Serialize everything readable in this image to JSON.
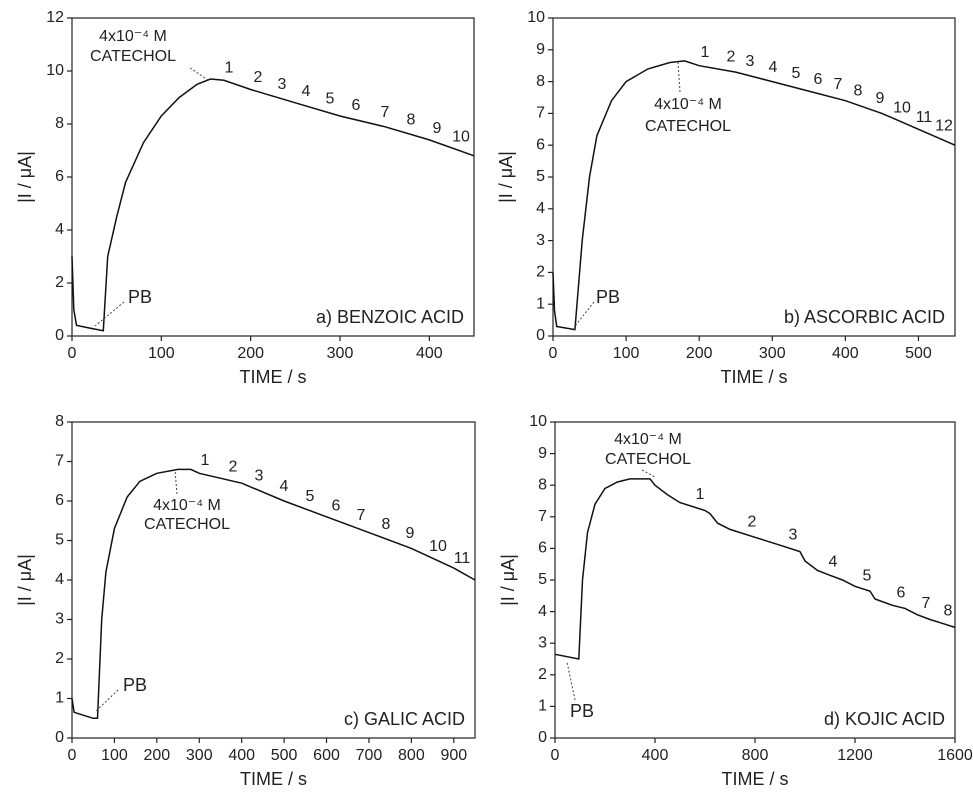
{
  "chart_data": [
    {
      "type": "line",
      "panel_label": "a) BENZOIC ACID",
      "x_label": "TIME / s",
      "y_label": "|I / μA|",
      "xlim": [
        0,
        450
      ],
      "ylim": [
        0,
        12
      ],
      "xticks": [
        0,
        100,
        200,
        300,
        400
      ],
      "yticks": [
        0,
        2,
        4,
        6,
        8,
        10,
        12
      ],
      "series": [
        {
          "color": "#111111",
          "x": [
            0,
            2,
            5,
            20,
            35,
            40,
            50,
            60,
            80,
            100,
            120,
            140,
            155,
            170,
            200,
            250,
            300,
            350,
            400,
            450
          ],
          "values": [
            3.0,
            1.0,
            0.4,
            0.3,
            0.2,
            3.0,
            4.5,
            5.8,
            7.3,
            8.3,
            9.0,
            9.5,
            9.7,
            9.65,
            9.3,
            8.8,
            8.3,
            7.9,
            7.4,
            6.8
          ]
        }
      ],
      "catechol_label": [
        "4x10⁻⁴ M",
        "CATECHOL"
      ],
      "baseline_label": "PB",
      "step_labels": [
        "1",
        "2",
        "3",
        "4",
        "5",
        "6",
        "7",
        "8",
        "9",
        "10"
      ]
    },
    {
      "type": "line",
      "panel_label": "b) ASCORBIC ACID",
      "x_label": "TIME / s",
      "y_label": "|I / μA|",
      "xlim": [
        0,
        550
      ],
      "ylim": [
        0,
        10
      ],
      "xticks": [
        0,
        100,
        200,
        300,
        400,
        500
      ],
      "yticks": [
        0,
        1,
        2,
        3,
        4,
        5,
        6,
        7,
        8,
        9,
        10
      ],
      "series": [
        {
          "color": "#111111",
          "x": [
            0,
            2,
            5,
            30,
            40,
            50,
            60,
            80,
            100,
            130,
            160,
            180,
            200,
            250,
            300,
            350,
            400,
            450,
            500,
            550
          ],
          "values": [
            2.0,
            0.8,
            0.3,
            0.2,
            3.0,
            5.0,
            6.3,
            7.4,
            8.0,
            8.4,
            8.6,
            8.65,
            8.5,
            8.3,
            8.0,
            7.7,
            7.4,
            7.0,
            6.5,
            6.0
          ]
        }
      ],
      "catechol_label": [
        "4x10⁻⁴ M",
        "CATECHOL"
      ],
      "baseline_label": "PB",
      "step_labels": [
        "1",
        "2",
        "3",
        "4",
        "5",
        "6",
        "7",
        "8",
        "9",
        "10",
        "11",
        "12"
      ]
    },
    {
      "type": "line",
      "panel_label": "c) GALIC ACID",
      "x_label": "TIME / s",
      "y_label": "|I / μA|",
      "xlim": [
        0,
        950
      ],
      "ylim": [
        0,
        8
      ],
      "xticks": [
        0,
        100,
        200,
        300,
        400,
        500,
        600,
        700,
        800,
        900
      ],
      "yticks": [
        0,
        1,
        2,
        3,
        4,
        5,
        6,
        7,
        8
      ],
      "series": [
        {
          "color": "#111111",
          "x": [
            0,
            5,
            50,
            60,
            70,
            80,
            100,
            130,
            160,
            200,
            250,
            280,
            300,
            400,
            500,
            600,
            700,
            800,
            900,
            950
          ],
          "values": [
            1.0,
            0.65,
            0.5,
            0.5,
            3.0,
            4.2,
            5.3,
            6.1,
            6.5,
            6.7,
            6.8,
            6.8,
            6.7,
            6.45,
            6.0,
            5.6,
            5.2,
            4.8,
            4.3,
            4.0
          ]
        }
      ],
      "catechol_label": [
        "4x10⁻⁴ M",
        "CATECHOL"
      ],
      "baseline_label": "PB",
      "step_labels": [
        "1",
        "2",
        "3",
        "4",
        "5",
        "6",
        "7",
        "8",
        "9",
        "10",
        "11"
      ]
    },
    {
      "type": "line",
      "panel_label": "d) KOJIC ACID",
      "x_label": "TIME / s",
      "y_label": "|I / μA|",
      "xlim": [
        0,
        1600
      ],
      "ylim": [
        0,
        10
      ],
      "xticks": [
        0,
        400,
        800,
        1200,
        1600
      ],
      "yticks": [
        0,
        1,
        2,
        3,
        4,
        5,
        6,
        7,
        8,
        9,
        10
      ],
      "series": [
        {
          "color": "#111111",
          "x": [
            0,
            95,
            110,
            130,
            160,
            200,
            250,
            300,
            380,
            400,
            450,
            500,
            600,
            620,
            650,
            700,
            800,
            900,
            980,
            1000,
            1050,
            1100,
            1150,
            1200,
            1260,
            1280,
            1350,
            1400,
            1450,
            1500,
            1560,
            1600
          ],
          "values": [
            2.65,
            2.5,
            5.0,
            6.5,
            7.4,
            7.9,
            8.1,
            8.2,
            8.2,
            8.0,
            7.7,
            7.45,
            7.2,
            7.1,
            6.8,
            6.6,
            6.35,
            6.1,
            5.9,
            5.6,
            5.3,
            5.15,
            5.0,
            4.8,
            4.65,
            4.4,
            4.2,
            4.1,
            3.9,
            3.75,
            3.6,
            3.5
          ]
        }
      ],
      "catechol_label": [
        "4x10⁻⁴ M",
        "CATECHOL"
      ],
      "baseline_label": "PB",
      "step_labels": [
        "1",
        "2",
        "3",
        "4",
        "5",
        "6",
        "7",
        "8"
      ]
    }
  ]
}
